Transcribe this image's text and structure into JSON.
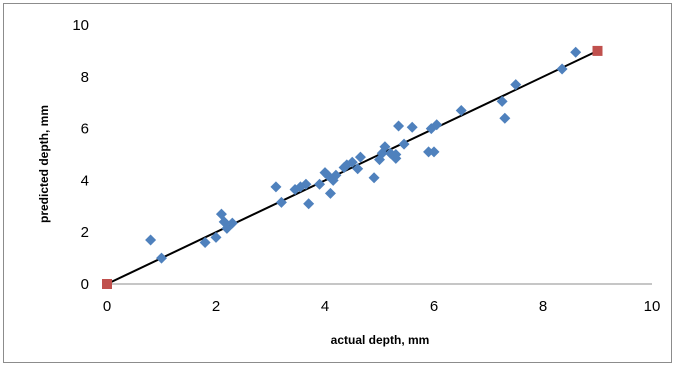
{
  "chart_data": {
    "type": "scatter",
    "title": "",
    "xlabel": "actual depth, mm",
    "ylabel": "predicted depth, mm",
    "xlim": [
      0,
      10
    ],
    "ylim": [
      0,
      10
    ],
    "x_ticks": [
      "0",
      "2",
      "4",
      "6",
      "8",
      "10"
    ],
    "y_ticks": [
      "0",
      "2",
      "4",
      "6",
      "8",
      "10"
    ],
    "grid": false,
    "legend": "none",
    "colors": {
      "points": "#4f81bd",
      "endpoints": "#c0504d",
      "fit_line": "#000000"
    },
    "series": [
      {
        "type": "scatter",
        "x": [
          0.8,
          1.0,
          1.8,
          2.0,
          2.1,
          2.15,
          2.2,
          2.3,
          3.1,
          3.2,
          3.45,
          3.55,
          3.65,
          3.7,
          3.9,
          4.0,
          4.05,
          4.1,
          4.15,
          4.2,
          4.35,
          4.4,
          4.5,
          4.6,
          4.65,
          4.9,
          5.0,
          5.05,
          5.1,
          5.2,
          5.3,
          5.3,
          5.35,
          5.45,
          5.6,
          5.9,
          5.95,
          6.0,
          6.05,
          6.5,
          7.25,
          7.3,
          7.5,
          8.35,
          8.6
        ],
        "y": [
          1.7,
          1.0,
          1.6,
          1.8,
          2.7,
          2.4,
          2.15,
          2.35,
          3.75,
          3.15,
          3.65,
          3.75,
          3.85,
          3.1,
          3.85,
          4.3,
          4.2,
          3.5,
          4.0,
          4.2,
          4.5,
          4.6,
          4.7,
          4.45,
          4.9,
          4.1,
          4.8,
          5.05,
          5.3,
          5.05,
          4.85,
          5.0,
          6.1,
          5.4,
          6.05,
          5.1,
          6.0,
          5.1,
          6.15,
          6.7,
          7.05,
          6.4,
          7.7,
          8.3,
          8.95
        ]
      },
      {
        "type": "scatter",
        "x": [
          0,
          9
        ],
        "y": [
          0,
          9
        ]
      },
      {
        "type": "line",
        "x": [
          0,
          9
        ],
        "y": [
          0,
          9
        ]
      }
    ]
  }
}
